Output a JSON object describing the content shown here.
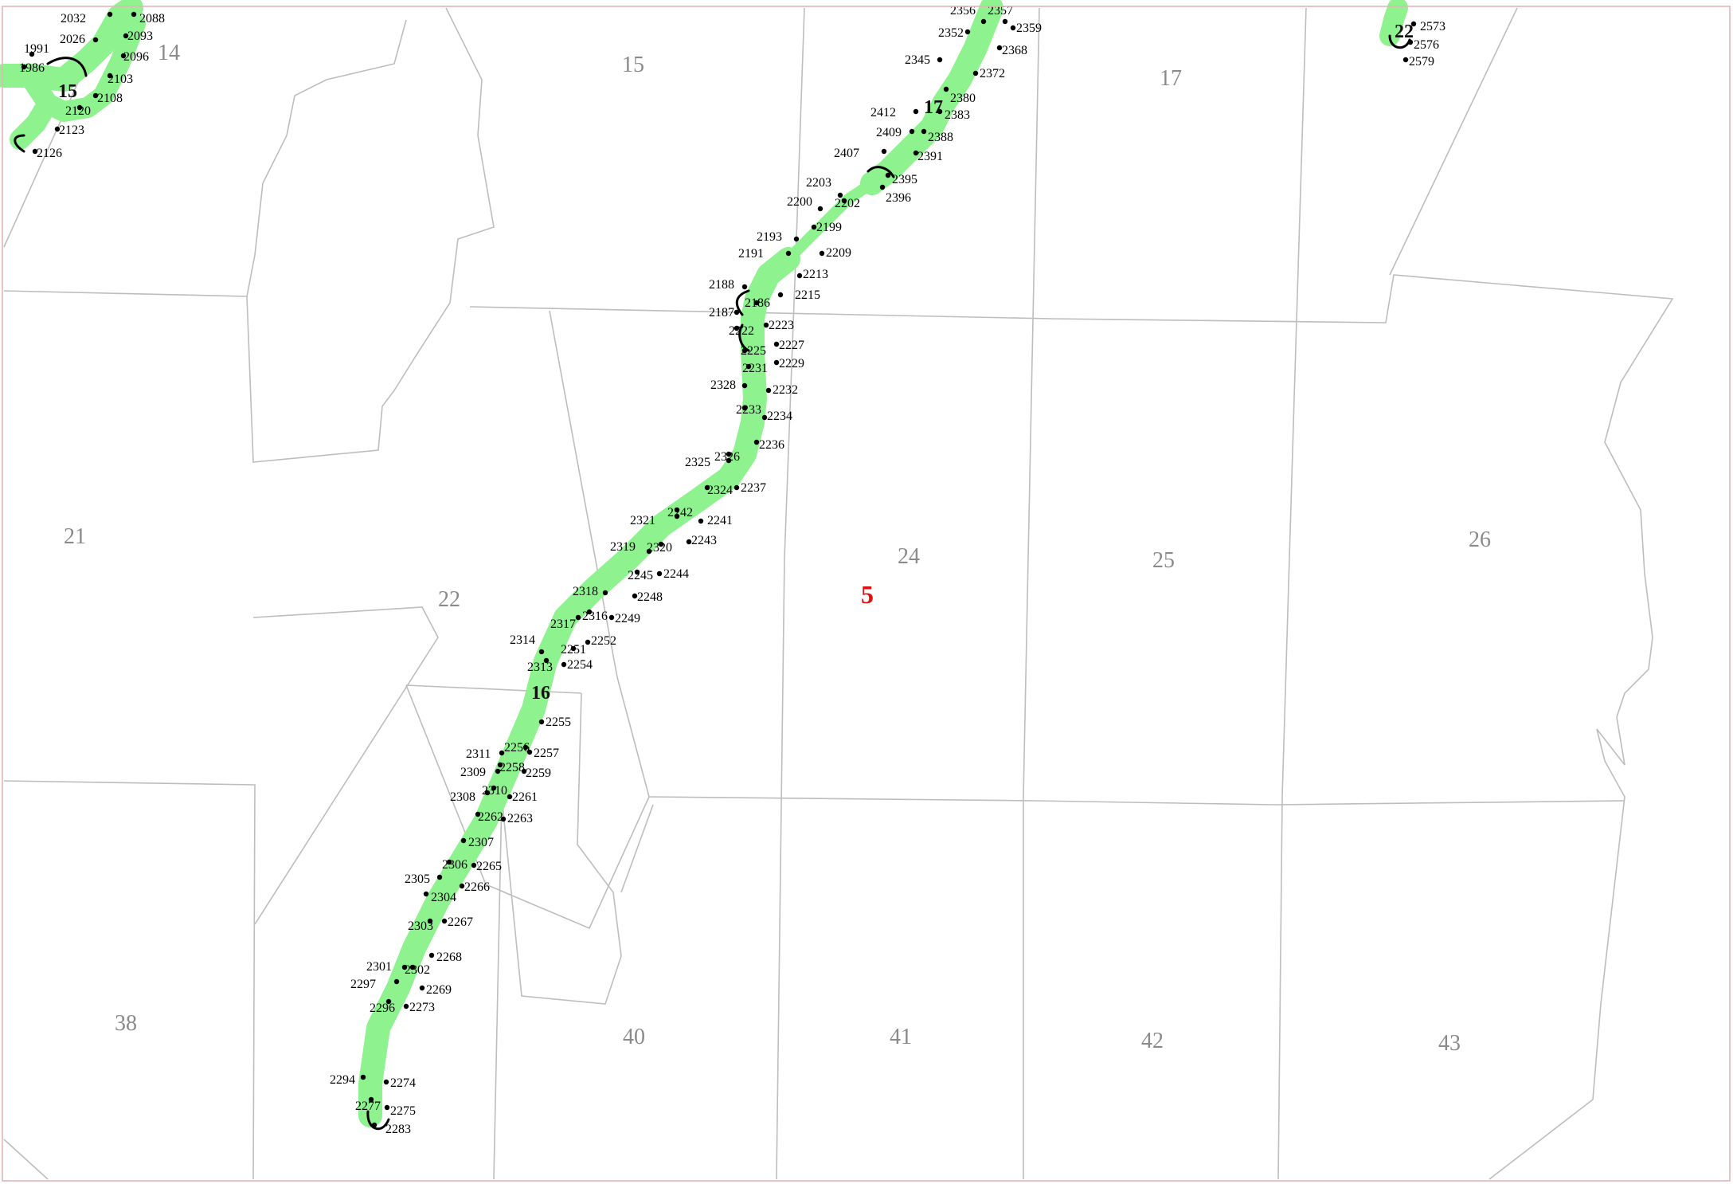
{
  "map": {
    "township_label": "5",
    "colors": {
      "corridor": "#8ef28e",
      "parcel_lines": "#bdbdbd",
      "township": "#e01010",
      "frame": "#e3b5b5"
    },
    "section_labels": [
      "14",
      "15",
      "17",
      "21",
      "22",
      "24",
      "25",
      "26",
      "38",
      "40",
      "41",
      "42",
      "43"
    ],
    "segment_numbers": [
      "15",
      "16",
      "17",
      "22"
    ],
    "point_labels": [
      "2032",
      "2088",
      "2093",
      "2096",
      "2103",
      "2108",
      "2120",
      "2123",
      "2126",
      "1991",
      "1986",
      "2026",
      "2356",
      "2357",
      "2359",
      "2352",
      "2368",
      "2345",
      "2372",
      "2380",
      "2383",
      "2412",
      "2409",
      "2388",
      "2391",
      "2407",
      "2395",
      "2396",
      "2203",
      "2202",
      "2200",
      "2193",
      "2199",
      "2191",
      "2209",
      "2213",
      "2215",
      "2188",
      "2186",
      "2187",
      "2222",
      "2223",
      "2225",
      "2227",
      "2231",
      "2229",
      "2328",
      "2232",
      "2233",
      "2234",
      "2236",
      "2325",
      "2326",
      "2324",
      "2237",
      "2321",
      "2242",
      "2241",
      "2319",
      "2320",
      "2243",
      "2244",
      "2245",
      "2318",
      "2248",
      "2317",
      "2316",
      "2249",
      "2314",
      "2251",
      "2252",
      "2313",
      "2254",
      "2255",
      "2311",
      "2256",
      "2257",
      "2309",
      "2258",
      "2259",
      "2308",
      "2310",
      "2261",
      "2262",
      "2263",
      "2307",
      "2306",
      "2265",
      "2305",
      "2304",
      "2266",
      "2303",
      "2267",
      "2268",
      "2301",
      "2302",
      "2297",
      "2269",
      "2296",
      "2273",
      "2294",
      "2274",
      "2277",
      "2275",
      "2283",
      "2573",
      "2576",
      "2579"
    ]
  }
}
